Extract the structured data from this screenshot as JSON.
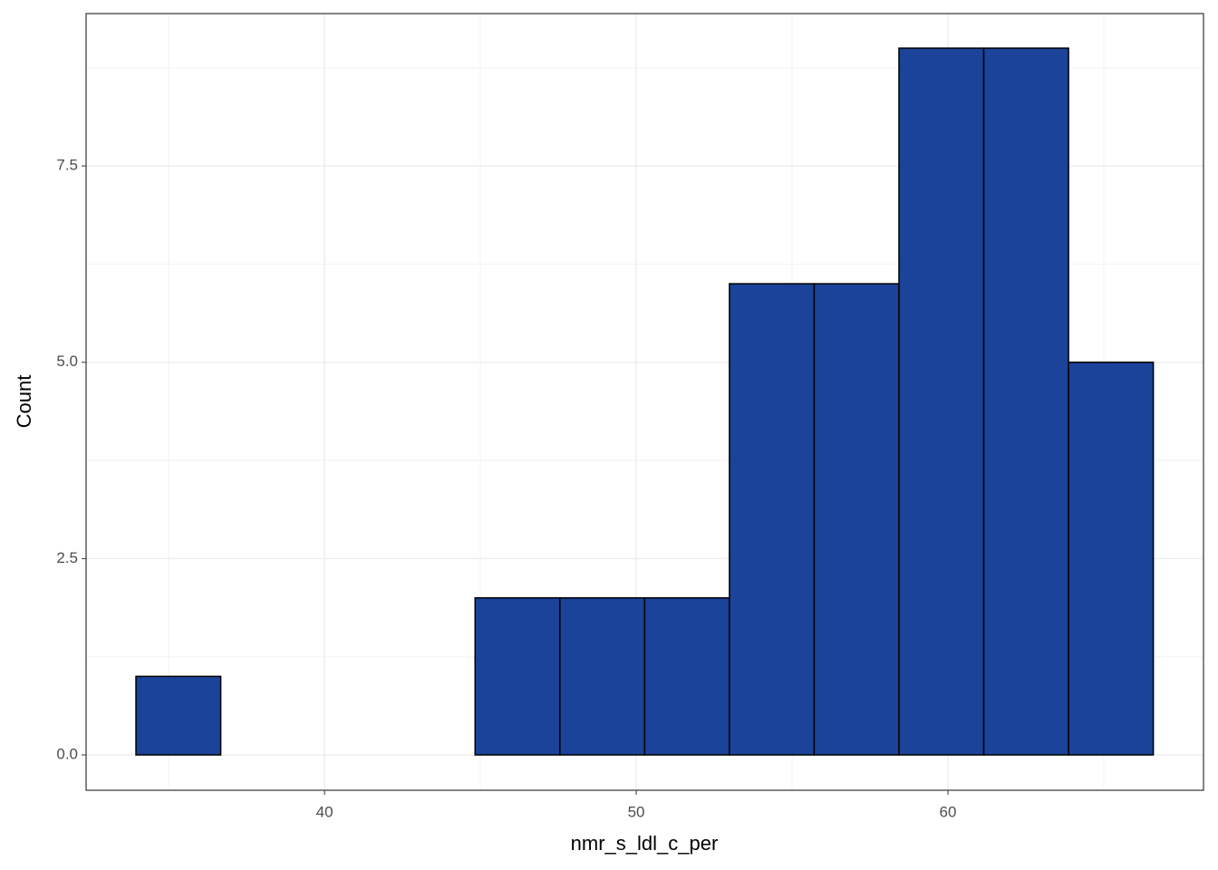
{
  "chart_data": {
    "type": "histogram",
    "x_label": "nmr_s_ldl_c_per",
    "y_label": "Count",
    "bins": [
      33.95,
      36.67,
      39.39,
      42.11,
      44.83,
      47.55,
      50.27,
      52.99,
      55.71,
      58.43,
      61.15,
      63.87,
      66.59
    ],
    "counts": [
      1,
      0,
      0,
      0,
      2,
      2,
      2,
      6,
      6,
      9,
      9,
      5
    ],
    "color": "#1a4399",
    "xlim": [
      32.35,
      68.2
    ],
    "xticks": [
      40,
      50,
      60
    ],
    "ylim": [
      -0.45,
      9.44
    ],
    "yticks": [
      {
        "value": 0,
        "label": "0.0"
      },
      {
        "value": 2.5,
        "label": "2.5"
      },
      {
        "value": 5,
        "label": "5.0"
      },
      {
        "value": 7.5,
        "label": "7.5"
      }
    ],
    "grid": true
  }
}
